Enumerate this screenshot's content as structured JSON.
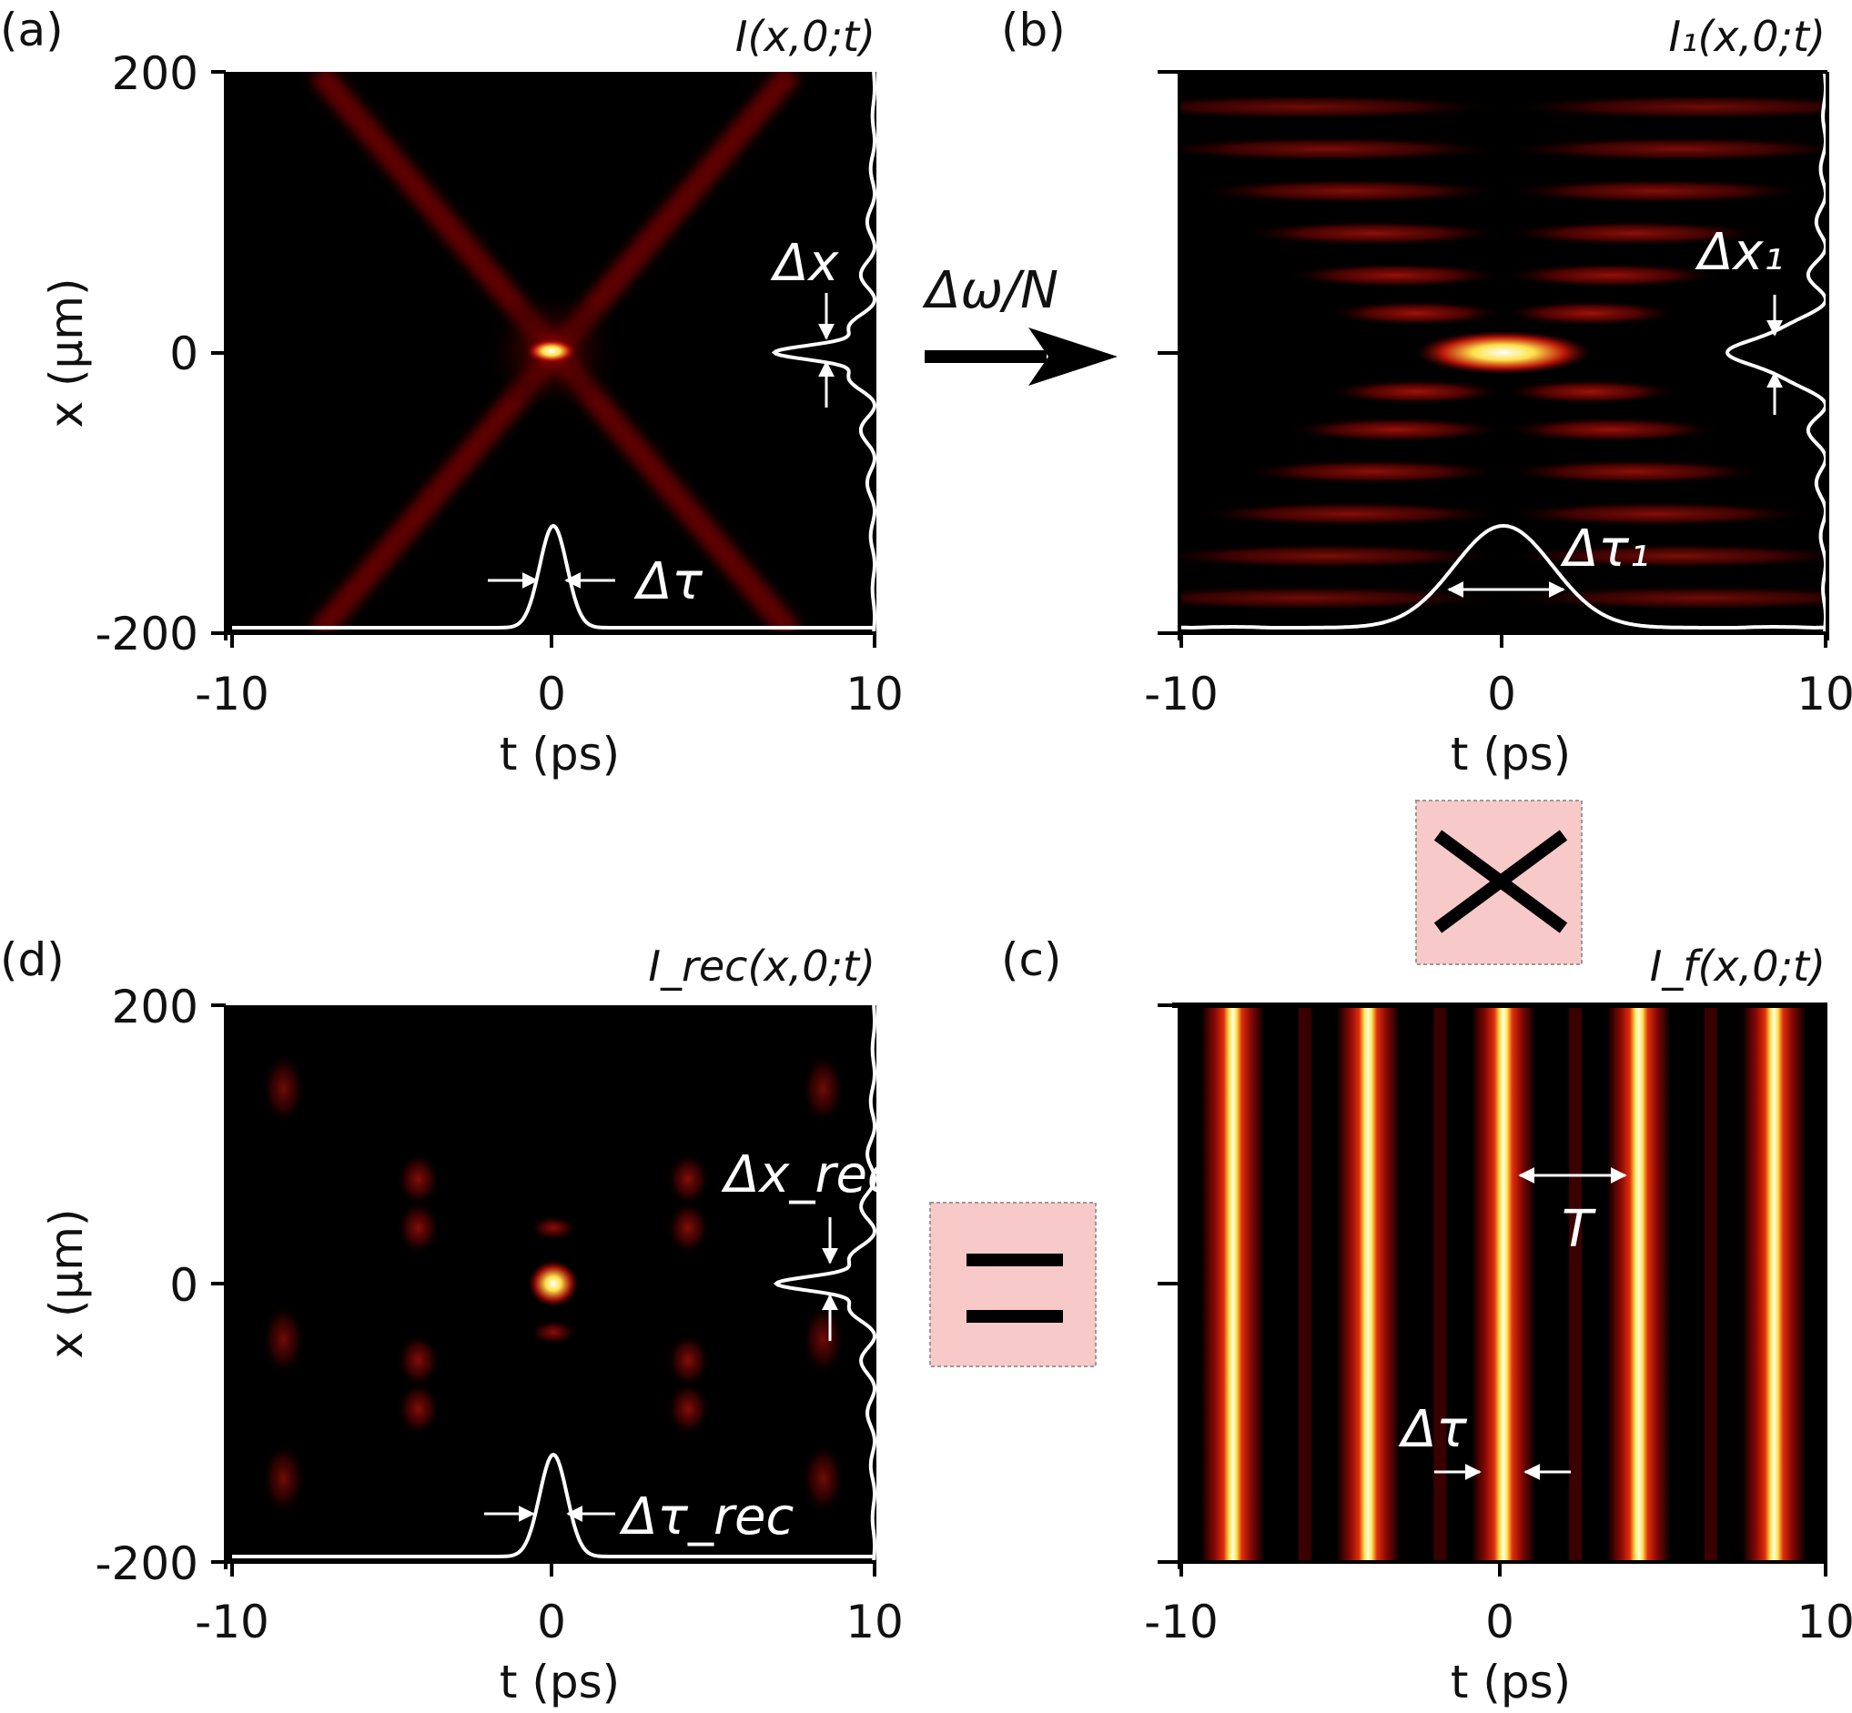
{
  "chart_data": [
    {
      "id": "a",
      "type": "heatmap",
      "panel_label": "(a)",
      "title": "I(x,0;t)",
      "xlabel": "t (ps)",
      "ylabel": "x (μm)",
      "xlim": [
        -10,
        10
      ],
      "ylim": [
        -200,
        200
      ],
      "xticks": [
        "-10",
        "0",
        "10"
      ],
      "yticks": [
        "200",
        "0",
        "-200"
      ],
      "colormap": "black-red-yellow-white",
      "profile_t": {
        "center": 0,
        "fwhm_ps": 1.0,
        "label": "Δτ"
      },
      "profile_x": {
        "center": 0,
        "fwhm_um": 12,
        "label": "Δx"
      },
      "pattern": "X-shaped cross of two beams, bright focus at t=0, x=0"
    },
    {
      "id": "b",
      "type": "heatmap",
      "panel_label": "(b)",
      "title": "I₁(x,0;t)",
      "xlabel": "t (ps)",
      "ylabel": "",
      "xlim": [
        -10,
        10
      ],
      "ylim": [
        -200,
        200
      ],
      "xticks": [
        "-10",
        "0",
        "10"
      ],
      "yticks": [],
      "colormap": "black-red-yellow-white",
      "profile_t": {
        "center": 0,
        "fwhm_ps": 3.6,
        "label": "Δτ₁"
      },
      "profile_x": {
        "center": 0,
        "fwhm_um": 20,
        "label": "Δx₁"
      },
      "pattern": "broadened horizontal fringes, bright central lobe at x=0"
    },
    {
      "id": "c",
      "type": "heatmap",
      "panel_label": "(c)",
      "title": "I_f(x,0;t)",
      "xlabel": "t (ps)",
      "ylabel": "",
      "xlim": [
        -10,
        10
      ],
      "ylim": [
        -200,
        200
      ],
      "xticks": [
        "-10",
        "0",
        "10"
      ],
      "yticks": [],
      "colormap": "black-red-yellow-white",
      "stripe_centers_ps": [
        -8.4,
        -4.2,
        0,
        4.2,
        8.4
      ],
      "period_label": "T",
      "width_label": "Δτ"
    },
    {
      "id": "d",
      "type": "heatmap",
      "panel_label": "(d)",
      "title": "I_rec(x,0;t)",
      "xlabel": "t (ps)",
      "ylabel": "x (μm)",
      "xlim": [
        -10,
        10
      ],
      "ylim": [
        -200,
        200
      ],
      "xticks": [
        "-10",
        "0",
        "10"
      ],
      "yticks": [
        "200",
        "0",
        "-200"
      ],
      "colormap": "black-red-yellow-white",
      "profile_t": {
        "center": 0,
        "fwhm_ps": 1.0,
        "label": "Δτ_rec"
      },
      "profile_x": {
        "center": 0,
        "fwhm_um": 12,
        "label": "Δx_rec"
      },
      "replica_centers_ps": [
        -8.4,
        -4.2,
        4.2,
        8.4
      ]
    }
  ],
  "labels": {
    "arrow_label": "Δω/N",
    "multiply_symbol": "×",
    "equals_symbol": "="
  },
  "colors": {
    "background": "#000000",
    "red": "#c0120a",
    "yellow": "#ffe24a",
    "white": "#ffffff",
    "operator_box": "#f8c9c9"
  }
}
